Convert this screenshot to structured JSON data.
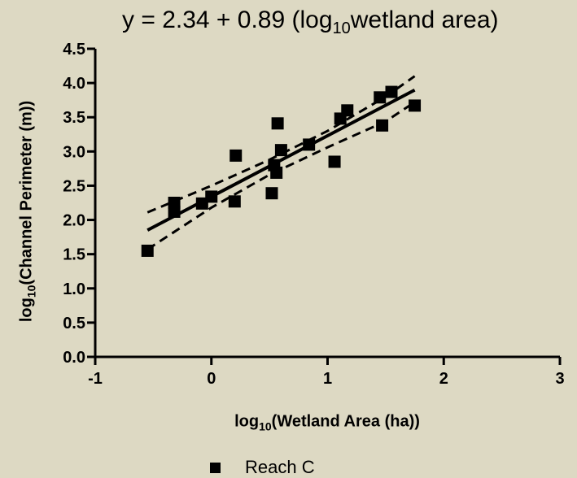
{
  "chart_data": {
    "type": "scatter",
    "annotation": {
      "prefix": "y = 2.34 + 0.89 (log",
      "sub": "10",
      "suffix": "wetland area)"
    },
    "xlabel": {
      "prefix": "log",
      "sub": "10",
      "suffix": "(Wetland Area (ha))"
    },
    "ylabel": {
      "prefix": "log",
      "sub": "10",
      "suffix": "(Channel Perimeter (m))"
    },
    "xlim": [
      -1,
      3
    ],
    "ylim": [
      0,
      4.5
    ],
    "x_ticks": [
      -1,
      0,
      1,
      2,
      3
    ],
    "y_ticks": [
      "0.0",
      "0.5",
      "1.0",
      "1.5",
      "2.0",
      "2.5",
      "3.0",
      "3.5",
      "4.0",
      "4.5"
    ],
    "grid": false,
    "legend_placement": "bottom",
    "series": [
      {
        "name": "Reach C",
        "marker": "square",
        "color": "#000000",
        "points": [
          [
            -0.55,
            1.55
          ],
          [
            -0.32,
            2.25
          ],
          [
            -0.32,
            2.12
          ],
          [
            -0.08,
            2.24
          ],
          [
            0.0,
            2.34
          ],
          [
            0.2,
            2.27
          ],
          [
            0.21,
            2.94
          ],
          [
            0.52,
            2.39
          ],
          [
            0.54,
            2.8
          ],
          [
            0.56,
            2.69
          ],
          [
            0.57,
            3.41
          ],
          [
            0.6,
            3.02
          ],
          [
            0.84,
            3.1
          ],
          [
            1.06,
            2.85
          ],
          [
            1.11,
            3.48
          ],
          [
            1.17,
            3.6
          ],
          [
            1.45,
            3.79
          ],
          [
            1.47,
            3.38
          ],
          [
            1.55,
            3.87
          ],
          [
            1.75,
            3.67
          ]
        ]
      }
    ],
    "fit_line": {
      "intercept": 2.34,
      "slope": 0.89,
      "x_range": [
        -0.55,
        1.75
      ]
    },
    "confidence_band": {
      "upper": [
        [
          -0.55,
          2.11
        ],
        [
          0.0,
          2.5
        ],
        [
          0.5,
          2.88
        ],
        [
          1.0,
          3.3
        ],
        [
          1.5,
          3.8
        ],
        [
          1.75,
          4.1
        ]
      ],
      "lower": [
        [
          -0.55,
          1.57
        ],
        [
          0.0,
          2.18
        ],
        [
          0.5,
          2.66
        ],
        [
          1.0,
          3.06
        ],
        [
          1.5,
          3.44
        ],
        [
          1.75,
          3.72
        ]
      ]
    },
    "colors": {
      "background": "#ddd9c3",
      "ink": "#000000"
    }
  }
}
